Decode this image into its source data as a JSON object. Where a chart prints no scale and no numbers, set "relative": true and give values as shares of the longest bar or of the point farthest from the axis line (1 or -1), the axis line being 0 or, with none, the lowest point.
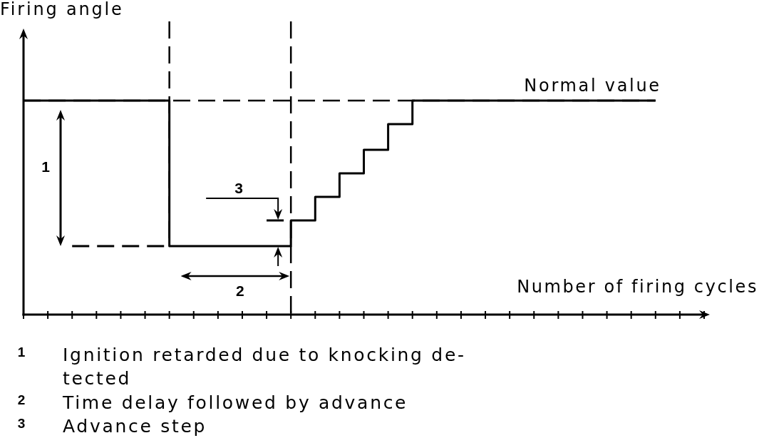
{
  "chart_data": {
    "type": "step",
    "relative": true,
    "ylabel": "Firing angle",
    "xlabel": "Number of firing cycles",
    "categories": [
      null,
      null,
      null,
      null,
      null,
      null,
      null,
      null,
      null,
      null,
      null,
      null,
      null,
      null,
      null,
      null,
      null,
      null,
      null,
      null,
      null,
      null,
      null,
      null,
      null,
      null,
      null,
      null,
      null
    ],
    "series": [
      {
        "color": "#000000",
        "line_style": "solid",
        "values": [
          1,
          1,
          1,
          1,
          1,
          1,
          0.32,
          0.32,
          0.32,
          0.32,
          0.32,
          0.44,
          0.55,
          0.66,
          0.77,
          0.89,
          1,
          1,
          1,
          1,
          1,
          1,
          1,
          1,
          1,
          1,
          1,
          null,
          null
        ]
      },
      {
        "type": "line",
        "color": "#000000",
        "line_style": "dashed",
        "values": [
          null,
          null,
          0.32,
          0.32,
          0.32,
          0.32,
          0.32,
          null,
          null,
          null,
          null,
          null,
          null,
          null,
          null,
          null,
          null,
          null,
          null,
          null,
          null,
          null,
          null,
          null,
          null,
          null,
          null,
          null,
          null
        ]
      },
      {
        "type": "line",
        "color": "#000000",
        "line_style": "dashed",
        "values": [
          null,
          null,
          null,
          null,
          null,
          null,
          null,
          null,
          null,
          null,
          0.44,
          0.44,
          null,
          null,
          null,
          null,
          null,
          null,
          null,
          null,
          null,
          null,
          null,
          null,
          null,
          null,
          null,
          null,
          null
        ]
      }
    ],
    "ref_lines": [
      {
        "axis": "y",
        "value": 1,
        "label": "Normal value",
        "line_style": "dashed",
        "color": "#000000"
      }
    ],
    "annotations": [
      "1",
      "2",
      "3",
      "1 Ignition retarded due to knocking de-\ntected",
      "2 Time delay followed by advance",
      "3 Advance step"
    ]
  }
}
